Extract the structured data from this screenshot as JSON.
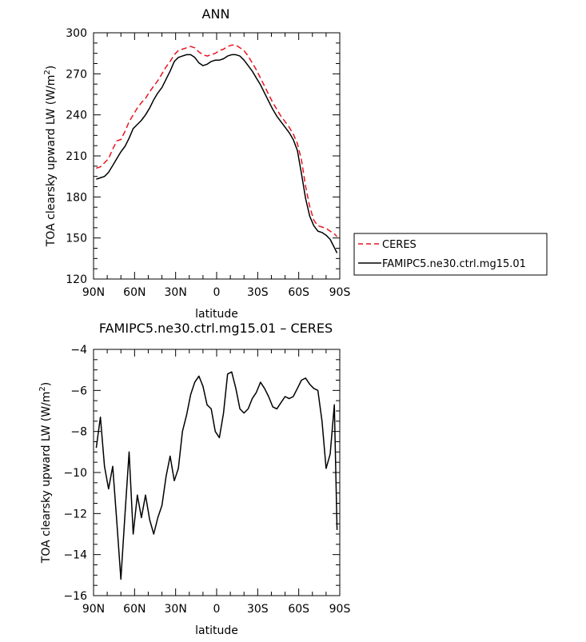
{
  "chart_data": [
    {
      "type": "line",
      "title": "ANN",
      "xlabel": "latitude",
      "ylabel": "TOA clearsky upward LW (W/m²)",
      "ylabel_main": "TOA clearsky upward LW (W/m",
      "ylabel_sup": "2",
      "ylabel_close": ")",
      "xlim": [
        90,
        -90
      ],
      "ylim": [
        120,
        300
      ],
      "x_ticks": [
        90,
        60,
        30,
        0,
        -30,
        -60,
        -90
      ],
      "x_tick_labels": [
        "90N",
        "60N",
        "30N",
        "0",
        "30S",
        "60S",
        "90S"
      ],
      "y_ticks": [
        120,
        150,
        180,
        210,
        240,
        270,
        300
      ],
      "y_tick_labels": [
        "120",
        "150",
        "180",
        "210",
        "240",
        "270",
        "300"
      ],
      "legend": "right",
      "series": [
        {
          "name": "CERES",
          "color": "#e8141e",
          "dash": true,
          "x": [
            88,
            85,
            82,
            79,
            76,
            73,
            70,
            67,
            64,
            61,
            58,
            55,
            52,
            49,
            46,
            43,
            40,
            37,
            34,
            31,
            28,
            25,
            22,
            19,
            16,
            13,
            10,
            7,
            4,
            1,
            -2,
            -5,
            -8,
            -11,
            -14,
            -17,
            -20,
            -23,
            -26,
            -29,
            -32,
            -35,
            -38,
            -41,
            -44,
            -47,
            -50,
            -53,
            -56,
            -59,
            -62,
            -65,
            -68,
            -71,
            -74,
            -77,
            -80,
            -83,
            -86,
            -88
          ],
          "values": [
            201,
            202,
            205,
            208,
            215,
            221,
            222,
            228,
            235,
            240,
            245,
            249,
            252,
            257,
            261,
            265,
            270,
            275,
            279,
            284,
            287,
            288,
            289,
            290,
            289,
            286,
            284,
            283,
            284,
            285,
            287,
            288,
            290,
            291,
            291,
            289,
            287,
            283,
            278,
            273,
            267,
            261,
            255,
            249,
            244,
            239,
            235,
            231,
            226,
            219,
            207,
            188,
            173,
            163,
            159,
            158,
            157,
            155,
            153,
            151
          ]
        },
        {
          "name": "FAMIPC5.ne30.ctrl.mg15.01",
          "color": "#000000",
          "dash": false,
          "x": [
            88,
            85,
            82,
            79,
            76,
            73,
            70,
            67,
            64,
            61,
            58,
            55,
            52,
            49,
            46,
            43,
            40,
            37,
            34,
            31,
            28,
            25,
            22,
            19,
            16,
            13,
            10,
            7,
            4,
            1,
            -2,
            -5,
            -8,
            -11,
            -14,
            -17,
            -20,
            -23,
            -26,
            -29,
            -32,
            -35,
            -38,
            -41,
            -44,
            -47,
            -50,
            -53,
            -56,
            -59,
            -62,
            -65,
            -68,
            -71,
            -74,
            -77,
            -80,
            -83,
            -86,
            -88
          ],
          "values": [
            193,
            194,
            195,
            198,
            203,
            208,
            213,
            217,
            223,
            230,
            233,
            236,
            240,
            245,
            251,
            256,
            260,
            266,
            272,
            279,
            282,
            283,
            284,
            284,
            282,
            278,
            276,
            277,
            279,
            280,
            280,
            281,
            283,
            284,
            284,
            283,
            280,
            276,
            272,
            267,
            262,
            256,
            250,
            244,
            239,
            235,
            231,
            227,
            222,
            214,
            197,
            179,
            166,
            159,
            155,
            154,
            152,
            149,
            143,
            139
          ]
        }
      ]
    },
    {
      "type": "line",
      "title": "FAMIPC5.ne30.ctrl.mg15.01 – CERES",
      "xlabel": "latitude",
      "ylabel": "TOA clearsky upward LW (W/m²)",
      "ylabel_main": "TOA clearsky upward LW (W/m",
      "ylabel_sup": "2",
      "ylabel_close": ")",
      "xlim": [
        90,
        -90
      ],
      "ylim": [
        -16,
        -4
      ],
      "x_ticks": [
        90,
        60,
        30,
        0,
        -30,
        -60,
        -90
      ],
      "x_tick_labels": [
        "90N",
        "60N",
        "30N",
        "0",
        "30S",
        "60S",
        "90S"
      ],
      "y_ticks": [
        -16,
        -14,
        -12,
        -10,
        -8,
        -6,
        -4
      ],
      "y_tick_labels": [
        "−16",
        "−14",
        "−12",
        "−10",
        "−8",
        "−6",
        "−4"
      ],
      "legend": "none",
      "series": [
        {
          "color": "#000000",
          "dash": false,
          "x": [
            88,
            85,
            82,
            79,
            76,
            73,
            70,
            67,
            64,
            61,
            58,
            55,
            52,
            49,
            46,
            43,
            40,
            37,
            34,
            31,
            28,
            25,
            22,
            19,
            16,
            13,
            10,
            7,
            4,
            1,
            -2,
            -5,
            -8,
            -11,
            -14,
            -17,
            -20,
            -23,
            -26,
            -29,
            -32,
            -35,
            -38,
            -41,
            -44,
            -47,
            -50,
            -53,
            -56,
            -59,
            -62,
            -65,
            -68,
            -71,
            -74,
            -77,
            -80,
            -83,
            -86,
            -88
          ],
          "values": [
            -8.8,
            -7.3,
            -9.7,
            -10.8,
            -9.7,
            -12.4,
            -15.2,
            -12.0,
            -9.0,
            -13.0,
            -11.1,
            -12.2,
            -11.1,
            -12.3,
            -13.0,
            -12.2,
            -11.6,
            -10.2,
            -9.2,
            -10.4,
            -9.8,
            -8.0,
            -7.2,
            -6.2,
            -5.6,
            -5.3,
            -5.8,
            -6.7,
            -6.9,
            -8.0,
            -8.3,
            -7.1,
            -5.2,
            -5.1,
            -5.9,
            -6.9,
            -7.1,
            -6.9,
            -6.4,
            -6.1,
            -5.6,
            -5.9,
            -6.3,
            -6.8,
            -6.9,
            -6.6,
            -6.3,
            -6.4,
            -6.3,
            -5.9,
            -5.5,
            -5.4,
            -5.7,
            -5.9,
            -6.0,
            -7.5,
            -9.8,
            -9.1,
            -6.7,
            -12.8
          ]
        }
      ]
    }
  ]
}
